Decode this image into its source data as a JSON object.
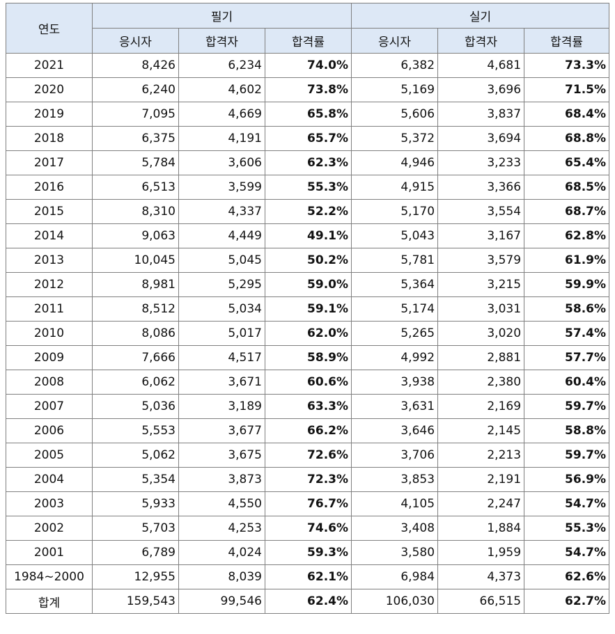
{
  "header": {
    "year": "연도",
    "written": "필기",
    "practical": "실기",
    "applicants": "응시자",
    "passers": "합격자",
    "pass_rate": "합격률"
  },
  "rows": [
    {
      "year": "2021",
      "w_app": "8,426",
      "w_pass": "6,234",
      "w_rate": "74.0%",
      "p_app": "6,382",
      "p_pass": "4,681",
      "p_rate": "73.3%"
    },
    {
      "year": "2020",
      "w_app": "6,240",
      "w_pass": "4,602",
      "w_rate": "73.8%",
      "p_app": "5,169",
      "p_pass": "3,696",
      "p_rate": "71.5%"
    },
    {
      "year": "2019",
      "w_app": "7,095",
      "w_pass": "4,669",
      "w_rate": "65.8%",
      "p_app": "5,606",
      "p_pass": "3,837",
      "p_rate": "68.4%"
    },
    {
      "year": "2018",
      "w_app": "6,375",
      "w_pass": "4,191",
      "w_rate": "65.7%",
      "p_app": "5,372",
      "p_pass": "3,694",
      "p_rate": "68.8%"
    },
    {
      "year": "2017",
      "w_app": "5,784",
      "w_pass": "3,606",
      "w_rate": "62.3%",
      "p_app": "4,946",
      "p_pass": "3,233",
      "p_rate": "65.4%"
    },
    {
      "year": "2016",
      "w_app": "6,513",
      "w_pass": "3,599",
      "w_rate": "55.3%",
      "p_app": "4,915",
      "p_pass": "3,366",
      "p_rate": "68.5%"
    },
    {
      "year": "2015",
      "w_app": "8,310",
      "w_pass": "4,337",
      "w_rate": "52.2%",
      "p_app": "5,170",
      "p_pass": "3,554",
      "p_rate": "68.7%"
    },
    {
      "year": "2014",
      "w_app": "9,063",
      "w_pass": "4,449",
      "w_rate": "49.1%",
      "p_app": "5,043",
      "p_pass": "3,167",
      "p_rate": "62.8%"
    },
    {
      "year": "2013",
      "w_app": "10,045",
      "w_pass": "5,045",
      "w_rate": "50.2%",
      "p_app": "5,781",
      "p_pass": "3,579",
      "p_rate": "61.9%"
    },
    {
      "year": "2012",
      "w_app": "8,981",
      "w_pass": "5,295",
      "w_rate": "59.0%",
      "p_app": "5,364",
      "p_pass": "3,215",
      "p_rate": "59.9%"
    },
    {
      "year": "2011",
      "w_app": "8,512",
      "w_pass": "5,034",
      "w_rate": "59.1%",
      "p_app": "5,174",
      "p_pass": "3,031",
      "p_rate": "58.6%"
    },
    {
      "year": "2010",
      "w_app": "8,086",
      "w_pass": "5,017",
      "w_rate": "62.0%",
      "p_app": "5,265",
      "p_pass": "3,020",
      "p_rate": "57.4%"
    },
    {
      "year": "2009",
      "w_app": "7,666",
      "w_pass": "4,517",
      "w_rate": "58.9%",
      "p_app": "4,992",
      "p_pass": "2,881",
      "p_rate": "57.7%"
    },
    {
      "year": "2008",
      "w_app": "6,062",
      "w_pass": "3,671",
      "w_rate": "60.6%",
      "p_app": "3,938",
      "p_pass": "2,380",
      "p_rate": "60.4%"
    },
    {
      "year": "2007",
      "w_app": "5,036",
      "w_pass": "3,189",
      "w_rate": "63.3%",
      "p_app": "3,631",
      "p_pass": "2,169",
      "p_rate": "59.7%"
    },
    {
      "year": "2006",
      "w_app": "5,553",
      "w_pass": "3,677",
      "w_rate": "66.2%",
      "p_app": "3,646",
      "p_pass": "2,145",
      "p_rate": "58.8%"
    },
    {
      "year": "2005",
      "w_app": "5,062",
      "w_pass": "3,675",
      "w_rate": "72.6%",
      "p_app": "3,706",
      "p_pass": "2,213",
      "p_rate": "59.7%"
    },
    {
      "year": "2004",
      "w_app": "5,354",
      "w_pass": "3,873",
      "w_rate": "72.3%",
      "p_app": "3,853",
      "p_pass": "2,191",
      "p_rate": "56.9%"
    },
    {
      "year": "2003",
      "w_app": "5,933",
      "w_pass": "4,550",
      "w_rate": "76.7%",
      "p_app": "4,105",
      "p_pass": "2,247",
      "p_rate": "54.7%"
    },
    {
      "year": "2002",
      "w_app": "5,703",
      "w_pass": "4,253",
      "w_rate": "74.6%",
      "p_app": "3,408",
      "p_pass": "1,884",
      "p_rate": "55.3%"
    },
    {
      "year": "2001",
      "w_app": "6,789",
      "w_pass": "4,024",
      "w_rate": "59.3%",
      "p_app": "3,580",
      "p_pass": "1,959",
      "p_rate": "54.7%"
    },
    {
      "year": "1984~2000",
      "w_app": "12,955",
      "w_pass": "8,039",
      "w_rate": "62.1%",
      "p_app": "6,984",
      "p_pass": "4,373",
      "p_rate": "62.6%"
    },
    {
      "year": "합계",
      "w_app": "159,543",
      "w_pass": "99,546",
      "w_rate": "62.4%",
      "p_app": "106,030",
      "p_pass": "66,515",
      "p_rate": "62.7%"
    }
  ]
}
